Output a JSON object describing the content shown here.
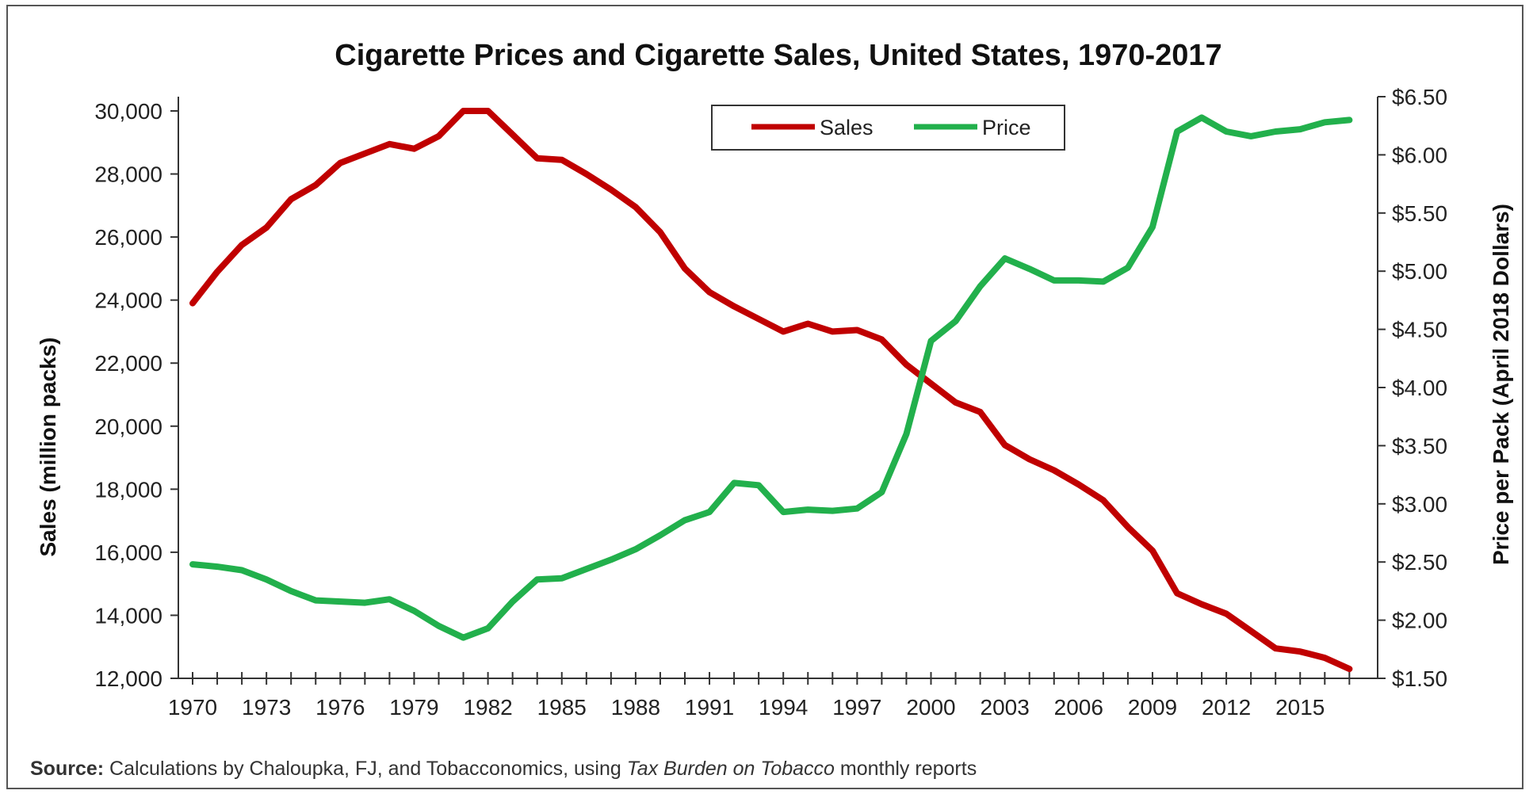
{
  "chart_data": {
    "type": "line",
    "title": "Cigarette Prices and Cigarette Sales, United States, 1970-2017",
    "xlabel": "",
    "ylabel": "Sales (million packs)",
    "y2label": "Price per Pack (April 2018 Dollars)",
    "x": [
      1970,
      1971,
      1972,
      1973,
      1974,
      1975,
      1976,
      1977,
      1978,
      1979,
      1980,
      1981,
      1982,
      1983,
      1984,
      1985,
      1986,
      1987,
      1988,
      1989,
      1990,
      1991,
      1992,
      1993,
      1994,
      1995,
      1996,
      1997,
      1998,
      1999,
      2000,
      2001,
      2002,
      2003,
      2004,
      2005,
      2006,
      2007,
      2008,
      2009,
      2010,
      2011,
      2012,
      2013,
      2014,
      2015,
      2016,
      2017
    ],
    "x_ticks": [
      "1970",
      "1973",
      "1976",
      "1979",
      "1982",
      "1985",
      "1988",
      "1991",
      "1994",
      "1997",
      "2000",
      "2003",
      "2006",
      "2009",
      "2012",
      "2015"
    ],
    "ylim": [
      12000,
      30000
    ],
    "y_ticks": [
      "12,000",
      "14,000",
      "16,000",
      "18,000",
      "20,000",
      "22,000",
      "24,000",
      "26,000",
      "28,000",
      "30,000"
    ],
    "y2lim": [
      1.5,
      6.5
    ],
    "y2_ticks": [
      "$1.50",
      "$2.00",
      "$2.50",
      "$3.00",
      "$3.50",
      "$4.00",
      "$4.50",
      "$5.00",
      "$5.50",
      "$6.00",
      "$6.50"
    ],
    "series": [
      {
        "name": "Sales",
        "axis": "left",
        "color": "#c00000",
        "values": [
          23900,
          24900,
          25750,
          26300,
          27200,
          27650,
          28350,
          28650,
          28950,
          28800,
          29200,
          30000,
          30000,
          29250,
          28500,
          28450,
          28000,
          27500,
          26950,
          26150,
          25000,
          24250,
          23800,
          23400,
          23000,
          23250,
          23000,
          23050,
          22750,
          21950,
          21350,
          20750,
          20450,
          19400,
          18950,
          18600,
          18150,
          17650,
          16800,
          16050,
          14700,
          14350,
          14050,
          13500,
          12950,
          12850,
          12650,
          12300
        ]
      },
      {
        "name": "Price",
        "axis": "right",
        "color": "#22b04c",
        "values": [
          2.48,
          2.46,
          2.43,
          2.35,
          2.25,
          2.17,
          2.16,
          2.15,
          2.18,
          2.08,
          1.95,
          1.85,
          1.93,
          2.16,
          2.35,
          2.36,
          2.44,
          2.52,
          2.61,
          2.73,
          2.86,
          2.93,
          3.18,
          3.16,
          2.93,
          2.95,
          2.94,
          2.96,
          3.1,
          3.6,
          4.4,
          4.57,
          4.87,
          5.11,
          5.02,
          4.92,
          4.92,
          4.91,
          5.03,
          5.38,
          6.2,
          6.32,
          6.2,
          6.16,
          6.2,
          6.22,
          6.28,
          6.3
        ]
      }
    ],
    "legend_position": "top-center",
    "grid": false
  },
  "source": {
    "label": "Source:",
    "text_before": " Calculations by Chaloupka, FJ, and Tobacconomics, using ",
    "italic": "Tax Burden on Tobacco",
    "text_after": " monthly reports"
  }
}
